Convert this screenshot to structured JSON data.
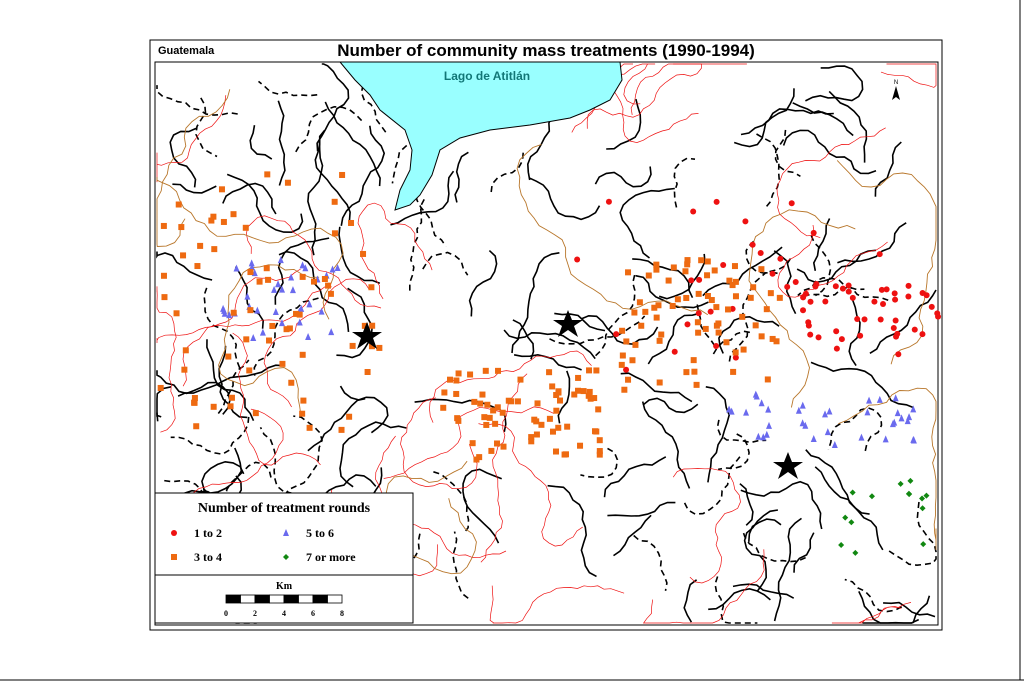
{
  "header": {
    "region": "Guatemala",
    "title": "Number of community mass treatments (1990-1994)"
  },
  "map": {
    "lake_label": "Lago de Atitlán",
    "north": "N"
  },
  "legend": {
    "title": "Number of treatment rounds",
    "items": [
      {
        "label": "1 to 2",
        "color": "#ee1111",
        "shape": "circle"
      },
      {
        "label": "5 to 6",
        "color": "#6a6aee",
        "shape": "triangle"
      },
      {
        "label": "3 to 4",
        "color": "#ee6a11",
        "shape": "square"
      },
      {
        "label": "7 or more",
        "color": "#118811",
        "shape": "diamond"
      }
    ]
  },
  "scale": {
    "unit": "Km",
    "ticks": [
      0,
      2,
      4,
      6,
      8
    ]
  }
}
